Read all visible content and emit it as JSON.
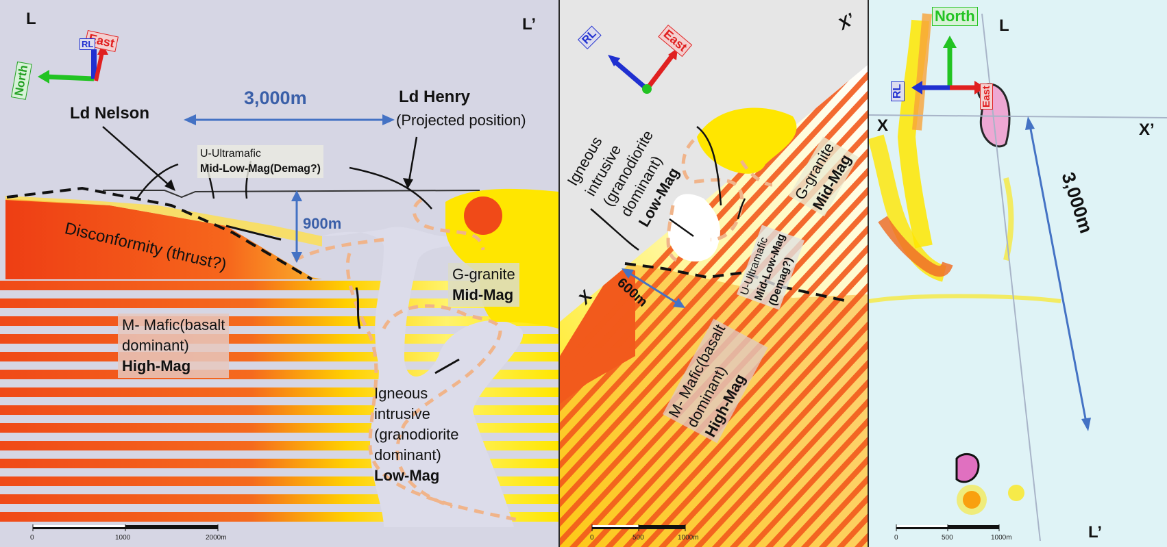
{
  "colors": {
    "high_mag": "#f25a1c",
    "mid_mag": "#ffe600",
    "low_mag": "#dff3f6",
    "arrow_blue": "#4472c4",
    "contact": "#f0b48a"
  },
  "panel_long_section": {
    "corner_left": "L",
    "corner_right": "L’",
    "axis_east": "East",
    "axis_north": "North",
    "axis_rl": "RL",
    "distance_label": "3,000m",
    "depth_label": "900m",
    "ld_nelson": "Ld Nelson",
    "ld_henry": "Ld Henry",
    "ld_henry_note": "(Projected position)",
    "ultramafic_title": "U-Ultramafic",
    "ultramafic_mag": "Mid-Low-Mag(Demag?)",
    "disconformity": "Disconformity (thrust?)",
    "granite_title": "G-granite",
    "granite_mag": "Mid-Mag",
    "mafic_line1": "M- Mafic(basalt",
    "mafic_line2": "dominant)",
    "mafic_mag": "High-Mag",
    "igneous_line1": "Igneous",
    "igneous_line2": "intrusive",
    "igneous_line3": "(granodiorite",
    "igneous_line4": "dominant)",
    "igneous_mag": "Low-Mag",
    "scale_ticks": [
      "0",
      "1000",
      "2000m"
    ]
  },
  "panel_cross_section": {
    "corner_left": "X",
    "corner_right": "X’",
    "axis_east": "East",
    "axis_rl": "RL",
    "depth_label": "600m",
    "igneous_line1": "Igneous",
    "igneous_line2": "intrusive",
    "igneous_line3": "(granodiorite",
    "igneous_line4": "dominant)",
    "igneous_mag": "Low-Mag",
    "granite_title": "G-granite",
    "granite_mag": "Mid-Mag",
    "ultramafic_title": "U-Ultramafic",
    "ultramafic_mag": "Mid-Low-Mag",
    "ultramafic_note": "(Demag?)",
    "mafic_line1": "M- Mafic(basalt",
    "mafic_line2": "dominant)",
    "mafic_mag": "High-Mag",
    "scale_ticks": [
      "0",
      "500",
      "1000m"
    ]
  },
  "panel_plan": {
    "axis_north": "North",
    "axis_east": "East",
    "axis_rl": "RL",
    "marker_l": "L",
    "marker_l_end": "L’",
    "marker_x": "X",
    "marker_x_end": "X’",
    "distance_label": "3,000m",
    "scale_ticks": [
      "0",
      "500",
      "1000m"
    ]
  }
}
